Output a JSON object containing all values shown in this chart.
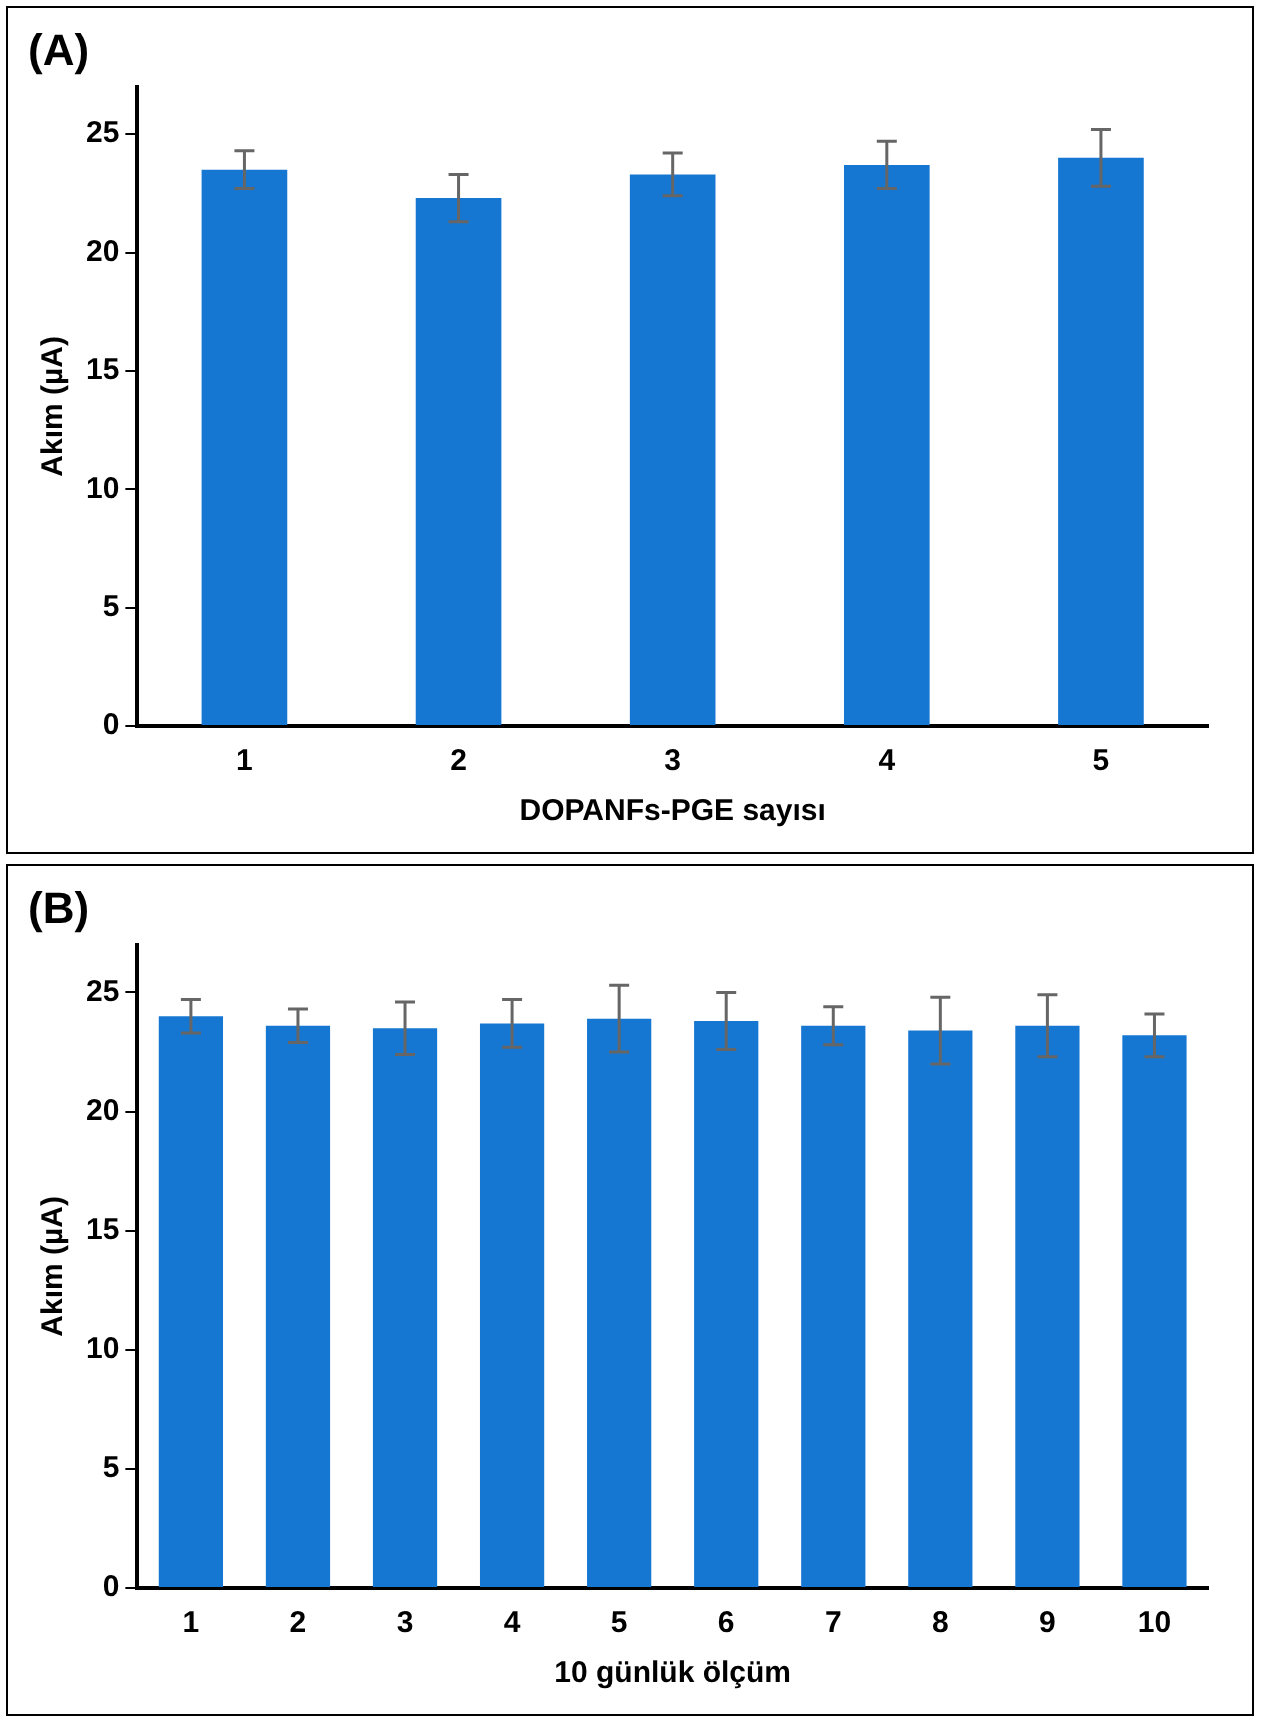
{
  "chart_data": [
    {
      "type": "bar",
      "title": "(A)",
      "xlabel": "DOPANFs-PGE sayısı",
      "ylabel": "Akım (µA)",
      "categories": [
        "1",
        "2",
        "3",
        "4",
        "5"
      ],
      "values": [
        23.5,
        22.3,
        23.3,
        23.7,
        24.0
      ],
      "errors": [
        0.8,
        1.0,
        0.9,
        1.0,
        1.2
      ],
      "color": "#1677d2",
      "ylim": [
        0,
        27
      ],
      "yticks": [
        0,
        5,
        10,
        15,
        20,
        25
      ],
      "grid": false,
      "legend": false
    },
    {
      "type": "bar",
      "title": "(B)",
      "xlabel": "10 günlük ölçüm",
      "ylabel": "Akım (µA)",
      "categories": [
        "1",
        "2",
        "3",
        "4",
        "5",
        "6",
        "7",
        "8",
        "9",
        "10"
      ],
      "values": [
        24.0,
        23.6,
        23.5,
        23.7,
        23.9,
        23.8,
        23.6,
        23.4,
        23.6,
        23.2
      ],
      "errors": [
        0.7,
        0.7,
        1.1,
        1.0,
        1.4,
        1.2,
        0.8,
        1.4,
        1.3,
        0.9
      ],
      "color": "#1677d2",
      "ylim": [
        0,
        27
      ],
      "yticks": [
        0,
        5,
        10,
        15,
        20,
        25
      ],
      "grid": false,
      "legend": false
    }
  ]
}
